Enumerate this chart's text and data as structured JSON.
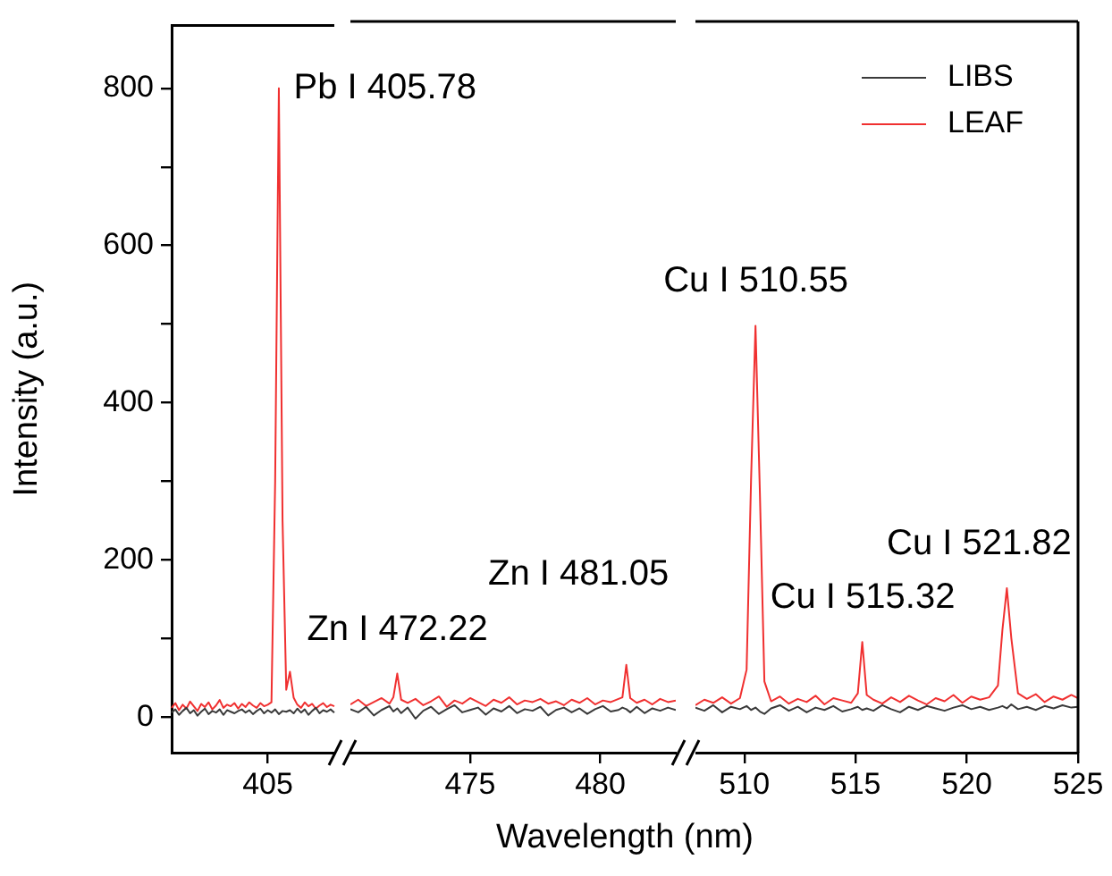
{
  "chart_data": [
    {
      "type": "line",
      "ylabel": "Intensity (a.u.)",
      "categories": [
        null,
        null,
        null,
        null,
        null,
        null,
        null,
        null,
        null,
        null,
        null,
        null,
        null,
        null,
        null,
        null,
        null,
        null,
        null,
        null,
        null,
        null,
        null,
        null,
        null,
        null,
        "405",
        null,
        null,
        null,
        null,
        null,
        null,
        null,
        null,
        null,
        null,
        null,
        null,
        null,
        null,
        null,
        null,
        null,
        null
      ],
      "ylim": [
        -45,
        880
      ],
      "yticks": [
        0,
        {
          "value": 100,
          "label": null
        },
        200,
        {
          "value": 300,
          "label": null
        },
        400,
        {
          "value": 500,
          "label": null
        },
        600,
        {
          "value": 700,
          "label": null
        },
        800
      ],
      "grid": false,
      "marker": "none",
      "line_style": "solid",
      "series": [
        {
          "color": "#3a3a3a",
          "values": [
            6,
            10,
            3,
            8,
            12,
            5,
            9,
            2,
            7,
            11,
            4,
            8,
            6,
            10,
            3,
            9,
            7,
            5,
            8,
            10,
            6,
            9,
            4,
            8,
            11,
            5,
            9,
            6,
            10,
            4,
            8,
            7,
            9,
            5,
            11,
            6,
            10,
            3,
            8,
            12,
            5,
            9,
            7,
            10,
            6
          ]
        },
        {
          "color": "#f03030",
          "values": [
            12,
            18,
            9,
            16,
            11,
            20,
            14,
            8,
            17,
            13,
            19,
            10,
            15,
            22,
            12,
            16,
            14,
            18,
            11,
            17,
            13,
            19,
            15,
            12,
            18,
            14,
            16,
            19,
            300,
            800,
            250,
            35,
            58,
            25,
            16,
            12,
            19,
            14,
            17,
            11,
            15,
            18,
            13,
            16,
            14
          ]
        }
      ],
      "annotations": [
        "Pb I 405.78"
      ]
    },
    {
      "type": "line",
      "xlabel": "Wavelength (nm)",
      "xlim": [
        470.4,
        482.9
      ],
      "xticks": [
        475,
        480
      ],
      "ylim": [
        -45,
        880
      ],
      "tick_labels": "x",
      "grid": false,
      "marker": "none",
      "line_style": "solid",
      "x": [
        470.4,
        470.7,
        471.0,
        471.3,
        471.6,
        471.9,
        472.05,
        472.2,
        472.35,
        472.6,
        472.9,
        473.2,
        473.5,
        473.8,
        474.1,
        474.4,
        474.7,
        475.0,
        475.3,
        475.6,
        475.9,
        476.2,
        476.5,
        476.8,
        477.1,
        477.4,
        477.7,
        478.0,
        478.3,
        478.6,
        478.9,
        479.2,
        479.5,
        479.8,
        480.1,
        480.4,
        480.7,
        480.85,
        481.0,
        481.15,
        481.4,
        481.7,
        482.0,
        482.3,
        482.6,
        482.9
      ],
      "series": [
        {
          "color": "#3a3a3a",
          "values": [
            10,
            6,
            13,
            2,
            9,
            14,
            7,
            11,
            5,
            12,
            -2,
            8,
            13,
            4,
            10,
            15,
            6,
            9,
            12,
            3,
            11,
            7,
            14,
            5,
            10,
            8,
            13,
            2,
            9,
            12,
            6,
            11,
            4,
            10,
            14,
            7,
            9,
            12,
            10,
            6,
            13,
            5,
            11,
            8,
            12,
            9
          ]
        },
        {
          "color": "#f03030",
          "values": [
            16,
            22,
            14,
            19,
            24,
            17,
            25,
            55,
            22,
            18,
            23,
            15,
            20,
            26,
            13,
            21,
            17,
            24,
            19,
            14,
            22,
            18,
            25,
            16,
            21,
            19,
            23,
            17,
            20,
            15,
            22,
            18,
            24,
            16,
            21,
            19,
            23,
            25,
            66,
            24,
            18,
            22,
            16,
            23,
            19,
            21
          ]
        }
      ],
      "annotations": [
        {
          "text": "Zn I 472.22",
          "x": 472.2,
          "y": 55
        },
        {
          "text": "Zn I 481.05",
          "x": 481.0,
          "y": 66
        }
      ]
    },
    {
      "type": "line",
      "xlim": [
        507.8,
        525
      ],
      "xticks": [
        510,
        515,
        520,
        525
      ],
      "ylim": [
        -45,
        880
      ],
      "tick_labels": "x",
      "grid": false,
      "legend": "top right",
      "marker": "none",
      "line_style": "solid",
      "x": [
        507.8,
        508.2,
        508.6,
        509.0,
        509.4,
        509.8,
        510.1,
        510.3,
        510.5,
        510.7,
        510.9,
        511.2,
        511.6,
        512.0,
        512.4,
        512.8,
        513.2,
        513.6,
        514.0,
        514.4,
        514.8,
        515.1,
        515.3,
        515.5,
        515.8,
        516.2,
        516.6,
        517.0,
        517.4,
        517.8,
        518.2,
        518.6,
        519.0,
        519.4,
        519.8,
        520.2,
        520.6,
        521.0,
        521.4,
        521.6,
        521.8,
        522.0,
        522.3,
        522.7,
        523.1,
        523.5,
        523.9,
        524.3,
        524.7,
        525.0
      ],
      "series": [
        {
          "name": "LIBS",
          "color": "#3a3a3a",
          "values": [
            12,
            8,
            15,
            6,
            13,
            10,
            14,
            9,
            12,
            7,
            4,
            11,
            15,
            8,
            13,
            6,
            12,
            9,
            14,
            7,
            10,
            13,
            9,
            11,
            8,
            15,
            10,
            6,
            13,
            9,
            14,
            11,
            8,
            12,
            15,
            10,
            13,
            9,
            12,
            14,
            11,
            16,
            10,
            13,
            9,
            14,
            11,
            15,
            12,
            13
          ]
        },
        {
          "name": "LEAF",
          "color": "#f03030",
          "values": [
            15,
            22,
            18,
            25,
            17,
            24,
            60,
            300,
            495,
            280,
            45,
            20,
            26,
            17,
            23,
            19,
            27,
            16,
            24,
            21,
            18,
            30,
            95,
            28,
            22,
            17,
            25,
            19,
            27,
            21,
            16,
            24,
            20,
            28,
            18,
            26,
            22,
            25,
            40,
            110,
            163,
            100,
            30,
            23,
            29,
            19,
            26,
            22,
            28,
            24
          ]
        }
      ],
      "annotations": [
        {
          "text": "Cu I 510.55",
          "x": 510.5,
          "y": 495
        },
        {
          "text": "Cu I 515.32",
          "x": 515.3,
          "y": 95
        },
        {
          "text": "Cu I 521.82",
          "x": 521.8,
          "y": 163
        }
      ]
    }
  ]
}
